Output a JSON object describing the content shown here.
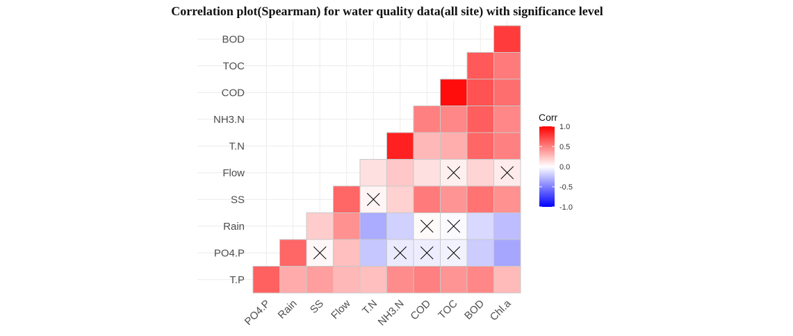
{
  "title": "Correlation plot(Spearman) for water quality data(all site) with significance level",
  "chart_data": {
    "type": "heatmap",
    "title": "Correlation plot(Spearman) for water quality data(all site) with significance level",
    "x_categories": [
      "PO4.P",
      "Rain",
      "SS",
      "Flow",
      "T.N",
      "NH3.N",
      "COD",
      "TOC",
      "BOD",
      "Chl.a"
    ],
    "y_categories": [
      "T.P",
      "PO4.P",
      "Rain",
      "SS",
      "Flow",
      "T.N",
      "NH3.N",
      "COD",
      "TOC",
      "BOD"
    ],
    "rows": [
      {
        "y": "T.P",
        "values": [
          0.62,
          0.33,
          0.38,
          0.28,
          0.25,
          0.45,
          0.5,
          0.42,
          0.47,
          0.27
        ]
      },
      {
        "y": "PO4.P",
        "values": [
          null,
          0.6,
          0.03,
          0.25,
          -0.22,
          -0.08,
          -0.07,
          -0.05,
          -0.2,
          -0.35
        ]
      },
      {
        "y": "Rain",
        "values": [
          null,
          null,
          0.2,
          0.43,
          -0.33,
          -0.18,
          0.02,
          -0.02,
          -0.15,
          -0.26
        ]
      },
      {
        "y": "SS",
        "values": [
          null,
          null,
          null,
          0.6,
          0.04,
          0.18,
          0.52,
          0.42,
          0.55,
          0.43
        ]
      },
      {
        "y": "Flow",
        "values": [
          null,
          null,
          null,
          null,
          0.12,
          0.22,
          0.12,
          0.06,
          0.17,
          0.08
        ]
      },
      {
        "y": "T.N",
        "values": [
          null,
          null,
          null,
          null,
          null,
          0.87,
          0.28,
          0.32,
          0.6,
          0.5
        ]
      },
      {
        "y": "NH3.N",
        "values": [
          null,
          null,
          null,
          null,
          null,
          null,
          0.5,
          0.47,
          0.63,
          0.47
        ]
      },
      {
        "y": "COD",
        "values": [
          null,
          null,
          null,
          null,
          null,
          null,
          null,
          0.95,
          0.68,
          0.57
        ]
      },
      {
        "y": "TOC",
        "values": [
          null,
          null,
          null,
          null,
          null,
          null,
          null,
          null,
          0.65,
          0.52
        ]
      },
      {
        "y": "BOD",
        "values": [
          null,
          null,
          null,
          null,
          null,
          null,
          null,
          null,
          null,
          0.77
        ]
      }
    ],
    "not_significant": [
      {
        "x": "SS",
        "y": "PO4.P"
      },
      {
        "x": "NH3.N",
        "y": "PO4.P"
      },
      {
        "x": "COD",
        "y": "PO4.P"
      },
      {
        "x": "TOC",
        "y": "PO4.P"
      },
      {
        "x": "COD",
        "y": "Rain"
      },
      {
        "x": "TOC",
        "y": "Rain"
      },
      {
        "x": "T.N",
        "y": "SS"
      },
      {
        "x": "TOC",
        "y": "Flow"
      },
      {
        "x": "Chl.a",
        "y": "Flow"
      }
    ],
    "color_scale": {
      "low": "#0000ff",
      "mid": "#ffffff",
      "high": "#ff0000",
      "limits": [
        -1,
        1
      ]
    },
    "legend": {
      "title": "Corr",
      "labels": [
        "1.0",
        "0.5",
        "0.0",
        "-0.5",
        "-1.0"
      ],
      "values": [
        1.0,
        0.5,
        0.0,
        -0.5,
        -1.0
      ],
      "position": "right"
    },
    "grid": true,
    "xlabel": "",
    "ylabel": ""
  }
}
